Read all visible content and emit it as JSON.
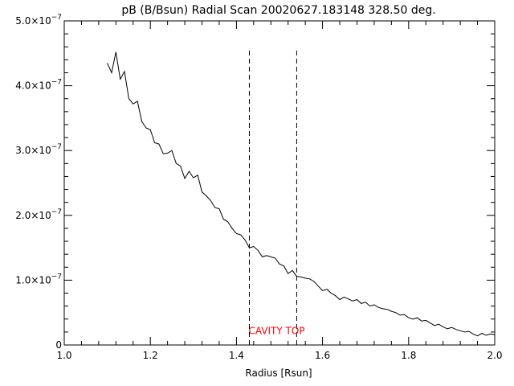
{
  "chart_data": {
    "type": "line",
    "title": "pB (B/Bsun) Radial Scan 20020627.183148 328.50 deg.",
    "xlabel": "Radius [Rsun]",
    "ylabel": "",
    "xlim": [
      1.0,
      2.0
    ],
    "ylim": [
      0,
      5e-07
    ],
    "grid": false,
    "x_ticks": [
      {
        "value": 1.0,
        "label": "1.0"
      },
      {
        "value": 1.2,
        "label": "1.2"
      },
      {
        "value": 1.4,
        "label": "1.4"
      },
      {
        "value": 1.6,
        "label": "1.6"
      },
      {
        "value": 1.8,
        "label": "1.8"
      },
      {
        "value": 2.0,
        "label": "2.0"
      }
    ],
    "y_ticks": [
      {
        "value": 0,
        "mantissa": "0",
        "exponent": ""
      },
      {
        "value": 1e-07,
        "mantissa": "1.0×10",
        "exponent": "−7"
      },
      {
        "value": 2e-07,
        "mantissa": "2.0×10",
        "exponent": "−7"
      },
      {
        "value": 3e-07,
        "mantissa": "3.0×10",
        "exponent": "−7"
      },
      {
        "value": 4e-07,
        "mantissa": "4.0×10",
        "exponent": "−7"
      },
      {
        "value": 5e-07,
        "mantissa": "5.0×10",
        "exponent": "−7"
      }
    ],
    "series": [
      {
        "x": [
          1.1,
          1.11,
          1.12,
          1.13,
          1.14,
          1.15,
          1.16,
          1.17,
          1.18,
          1.19,
          1.2,
          1.21,
          1.22,
          1.23,
          1.24,
          1.25,
          1.26,
          1.27,
          1.28,
          1.29,
          1.3,
          1.31,
          1.32,
          1.33,
          1.34,
          1.35,
          1.36,
          1.37,
          1.38,
          1.39,
          1.4,
          1.41,
          1.42,
          1.43,
          1.44,
          1.45,
          1.46,
          1.47,
          1.48,
          1.49,
          1.5,
          1.51,
          1.52,
          1.53,
          1.54,
          1.55,
          1.56,
          1.57,
          1.58,
          1.59,
          1.6,
          1.61,
          1.62,
          1.63,
          1.64,
          1.65,
          1.66,
          1.67,
          1.68,
          1.69,
          1.7,
          1.71,
          1.72,
          1.73,
          1.74,
          1.75,
          1.76,
          1.77,
          1.78,
          1.79,
          1.8,
          1.81,
          1.82,
          1.83,
          1.84,
          1.85,
          1.86,
          1.87,
          1.88,
          1.89,
          1.9,
          1.91,
          1.92,
          1.93,
          1.94,
          1.95,
          1.96,
          1.97,
          1.98,
          1.99,
          2.0
        ],
        "y": [
          4.35e-07,
          4.2e-07,
          4.52e-07,
          4.1e-07,
          4.22e-07,
          3.8e-07,
          3.72e-07,
          3.76e-07,
          3.45e-07,
          3.35e-07,
          3.32e-07,
          3.12e-07,
          3.1e-07,
          2.95e-07,
          2.96e-07,
          3e-07,
          2.8e-07,
          2.76e-07,
          2.57e-07,
          2.68e-07,
          2.58e-07,
          2.62e-07,
          2.36e-07,
          2.3e-07,
          2.23e-07,
          2.12e-07,
          2.1e-07,
          1.94e-07,
          1.9e-07,
          1.8e-07,
          1.72e-07,
          1.7e-07,
          1.62e-07,
          1.5e-07,
          1.52e-07,
          1.46e-07,
          1.36e-07,
          1.38e-07,
          1.36e-07,
          1.34e-07,
          1.25e-07,
          1.22e-07,
          1.1e-07,
          1.15e-07,
          1.06e-07,
          1.05e-07,
          1.03e-07,
          1.02e-07,
          9.8e-08,
          9.1e-08,
          8.4e-08,
          8.6e-08,
          8e-08,
          7.6e-08,
          7e-08,
          7.4e-08,
          7.1e-08,
          6.8e-08,
          7e-08,
          6.4e-08,
          6.6e-08,
          6e-08,
          6.2e-08,
          5.8e-08,
          5.6e-08,
          5.5e-08,
          5.2e-08,
          5e-08,
          4.6e-08,
          4.7e-08,
          4.2e-08,
          4e-08,
          4.2e-08,
          3.7e-08,
          3.8e-08,
          3.4e-08,
          3e-08,
          3.2e-08,
          2.8e-08,
          2.5e-08,
          2.7e-08,
          2.4e-08,
          2.2e-08,
          2e-08,
          2.1e-08,
          1.7e-08,
          1.4e-08,
          1.8e-08,
          1.5e-08,
          1.7e-08,
          1.6e-08
        ]
      }
    ],
    "reference_lines": [
      {
        "x": 1.43,
        "y_top": 4.55e-07
      },
      {
        "x": 1.54,
        "y_top": 4.55e-07
      }
    ],
    "annotations": [
      {
        "text": "CAVITY TOP",
        "x": 1.43,
        "y": 2.2e-08,
        "color": "#ff0000"
      }
    ],
    "colors": {
      "line": "#000000",
      "annotation": "#ff0000"
    }
  }
}
